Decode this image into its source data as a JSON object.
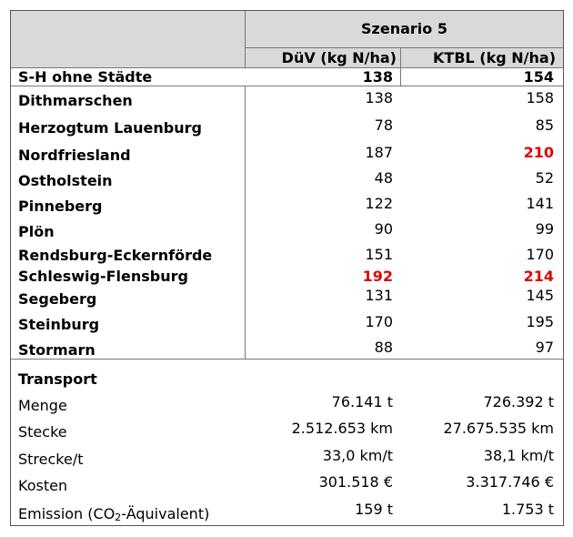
{
  "header": {
    "scenario": "Szenario 5",
    "col1": "DüV (kg N/ha)",
    "col2": "KTBL (kg N/ha)"
  },
  "total": {
    "label": "S-H ohne Städte",
    "duev": "138",
    "ktbl": "154"
  },
  "districts": [
    {
      "label": "Dithmarschen",
      "duev": "138",
      "ktbl": "158"
    },
    {
      "label": "Herzogtum Lauenburg",
      "duev": "78",
      "ktbl": "85"
    },
    {
      "label": "Nordfriesland",
      "duev": "187",
      "ktbl": "210"
    },
    {
      "label": "Ostholstein",
      "duev": "48",
      "ktbl": "52"
    },
    {
      "label": "Pinneberg",
      "duev": "122",
      "ktbl": "141"
    },
    {
      "label": "Plön",
      "duev": "90",
      "ktbl": "99"
    },
    {
      "label": "Rendsburg-Eckernförde",
      "duev": "151",
      "ktbl": "170"
    },
    {
      "label": "Schleswig-Flensburg",
      "duev": "192",
      "ktbl": "214"
    },
    {
      "label": "Segeberg",
      "duev": "131",
      "ktbl": "145"
    },
    {
      "label": "Steinburg",
      "duev": "170",
      "ktbl": "195"
    },
    {
      "label": "Stormarn",
      "duev": "88",
      "ktbl": "97"
    }
  ],
  "transport": {
    "title": "Transport",
    "rows": [
      {
        "label": "Menge",
        "duev": "76.141 t",
        "ktbl": "726.392 t"
      },
      {
        "label": "Stecke",
        "duev": "2.512.653 km",
        "ktbl": "27.675.535 km"
      },
      {
        "label": "Strecke/t",
        "duev": "33,0 km/t",
        "ktbl": "38,1 km/t"
      },
      {
        "label": "Kosten",
        "duev": "301.518 €",
        "ktbl": "3.317.746 €"
      }
    ],
    "emission": {
      "label_pre": "Emission (CO",
      "label_sub": "2",
      "label_post": "-Äquivalent)",
      "duev": "159 t",
      "ktbl": "1.753 t"
    }
  },
  "colors": {
    "header_bg": "#d9d9d9",
    "highlight": "#e00000",
    "grid": "#777777"
  }
}
